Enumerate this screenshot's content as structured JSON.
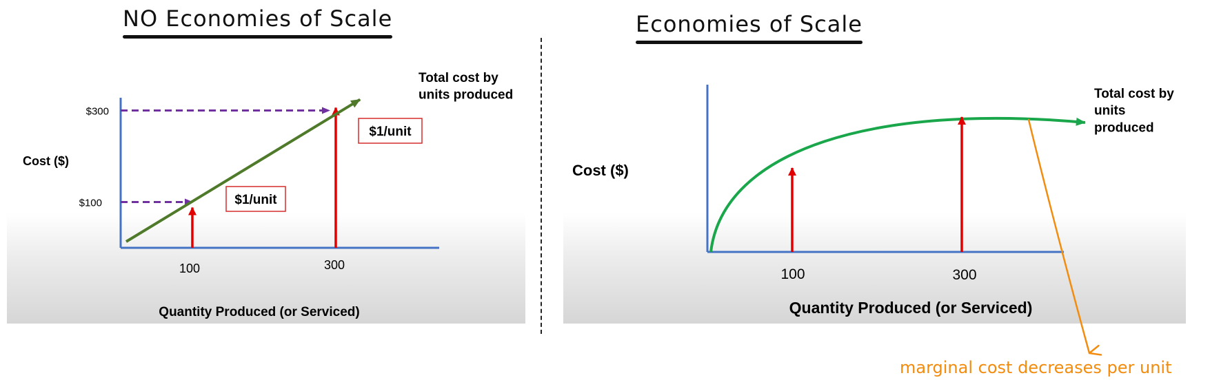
{
  "left_title": "NO Economies of Scale",
  "right_title": "Economies of Scale",
  "annotation": "marginal cost decreases per unit",
  "colors": {
    "axis": "#4472c4",
    "left_line": "#4e7a2a",
    "right_curve": "#1aa64a",
    "arrow_red": "#e00000",
    "dash_purple": "#7030a0",
    "annotation": "#f28c0f",
    "label_box_border": "#d62c2c"
  },
  "chart_data": [
    {
      "type": "line",
      "title": "NO Economies of Scale",
      "xlabel": "Quantity Produced (or Serviced)",
      "ylabel": "Cost ($)",
      "x_ticks": [
        "100",
        "300"
      ],
      "y_ticks": [
        "$100",
        "$300"
      ],
      "series": [
        {
          "name": "Total cost by units produced",
          "x": [
            0,
            100,
            300,
            330
          ],
          "y": [
            0,
            100,
            300,
            330
          ]
        }
      ],
      "marker_arrows_x": [
        100,
        300
      ],
      "reference_dashes_y": [
        100,
        300
      ],
      "labels": [
        "$1/unit",
        "$1/unit"
      ]
    },
    {
      "type": "line",
      "title": "Economies of Scale",
      "xlabel": "Quantity Produced (or Serviced)",
      "ylabel": "Cost ($)",
      "x_ticks": [
        "100",
        "300"
      ],
      "series": [
        {
          "name": "Total cost by units produced",
          "shape": "concave",
          "x": [
            0,
            100,
            300,
            430
          ],
          "y": [
            0,
            0.6,
            0.85,
            0.95
          ]
        }
      ],
      "marker_arrows_x": [
        100,
        300
      ]
    }
  ]
}
